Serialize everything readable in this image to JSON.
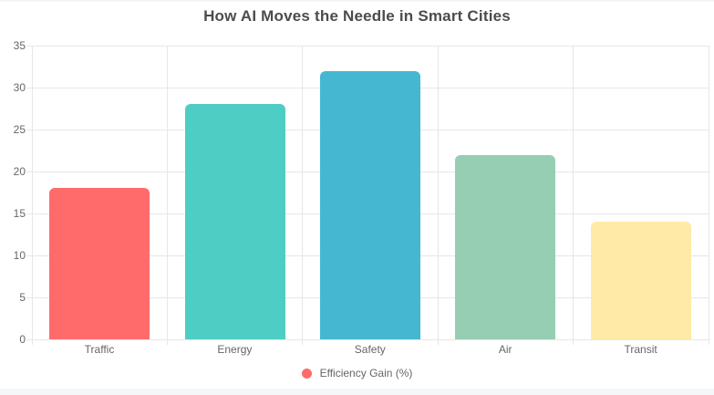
{
  "title": "How AI Moves the Needle in Smart Cities",
  "chart_data": {
    "type": "bar",
    "title": "How AI Moves the Needle in Smart Cities",
    "categories": [
      "Traffic",
      "Energy",
      "Safety",
      "Air",
      "Transit"
    ],
    "series": [
      {
        "name": "Efficiency Gain (%)",
        "values": [
          18,
          28,
          32,
          22,
          14
        ],
        "bar_colors": [
          "#FF6B6B",
          "#4ECDC4",
          "#45B7D1",
          "#96CEB4",
          "#FFEAA7"
        ]
      }
    ],
    "xlabel": "",
    "ylabel": "",
    "ylim": [
      0,
      35
    ],
    "yticks": [
      0,
      5,
      10,
      15,
      20,
      25,
      30,
      35
    ],
    "grid": true,
    "legend_position": "bottom"
  },
  "legend": {
    "label": "Efficiency Gain (%)",
    "marker_color": "#FF6B6B"
  },
  "colors": {
    "title_text": "#4c4c4c",
    "axis_text": "#666666",
    "gridline": "#e7e7e7"
  }
}
